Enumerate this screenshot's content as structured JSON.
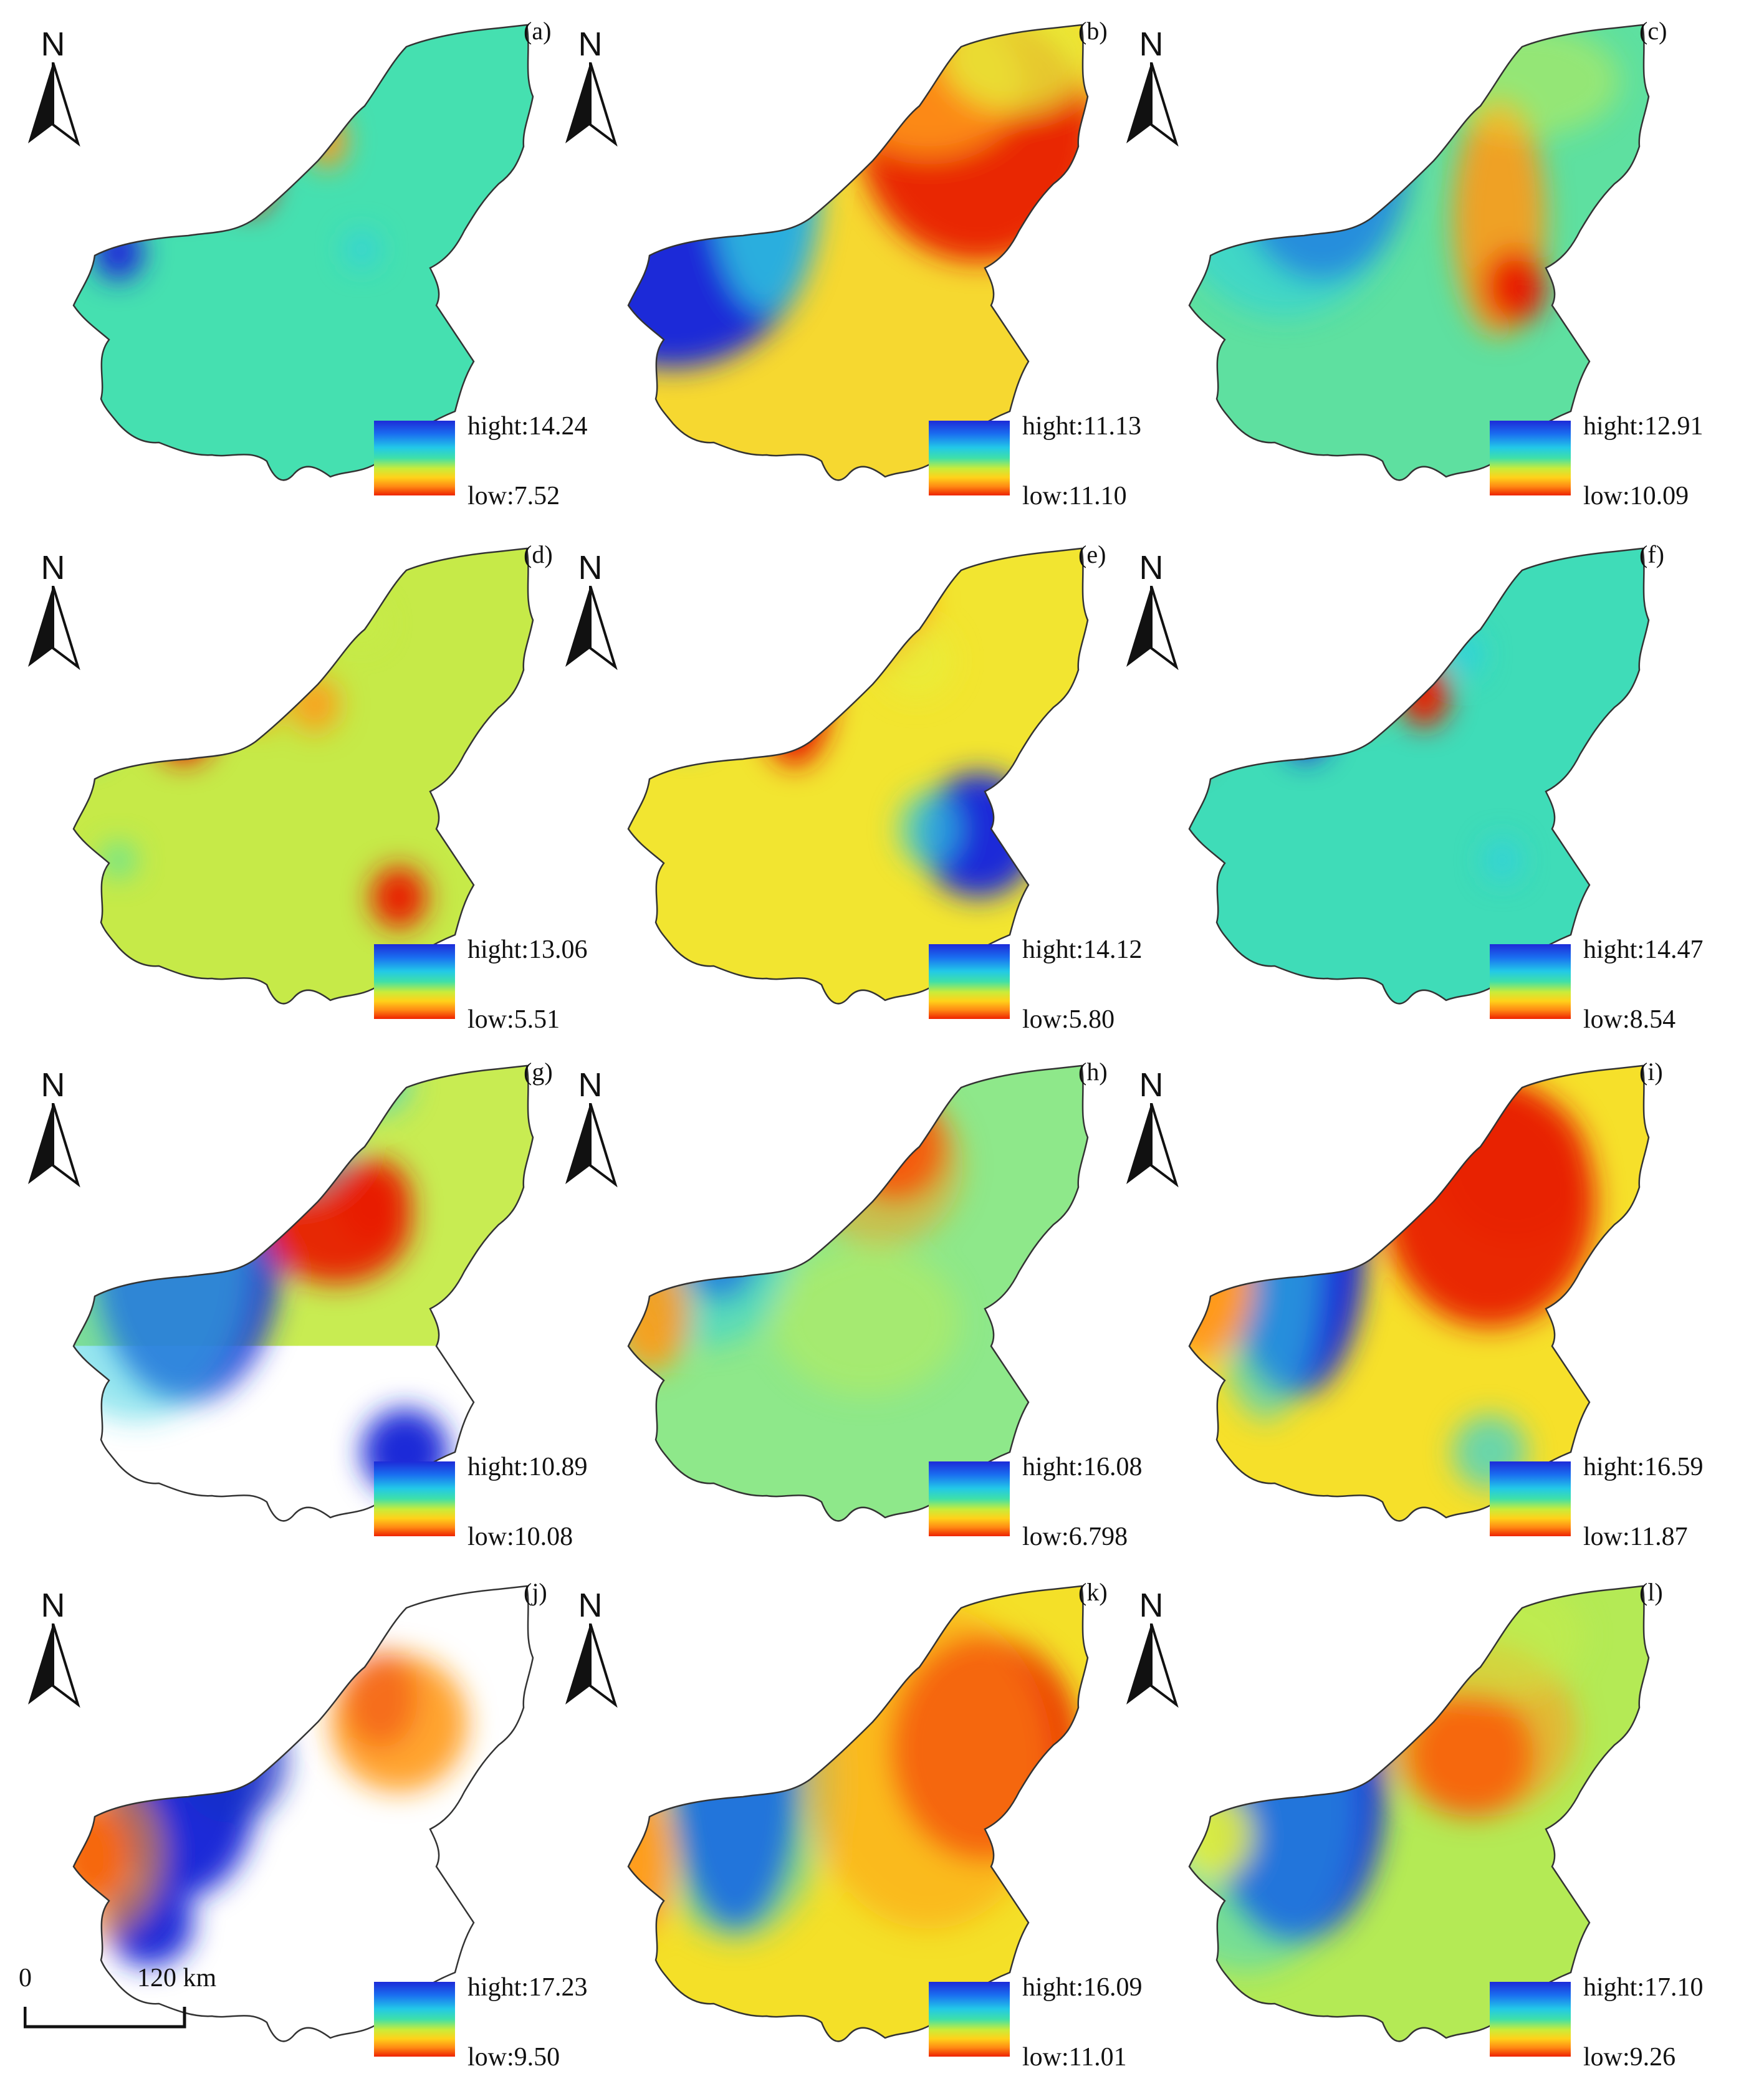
{
  "north_letter": "N",
  "scale": {
    "start": "0",
    "end": "120 km"
  },
  "panels": [
    {
      "label": "(a)",
      "high": "hight:14.24",
      "low": "low:7.52"
    },
    {
      "label": "(b)",
      "high": "hight:11.13",
      "low": "low:11.10"
    },
    {
      "label": "(c)",
      "high": "hight:12.91",
      "low": "low:10.09"
    },
    {
      "label": "(d)",
      "high": "hight:13.06",
      "low": "low:5.51"
    },
    {
      "label": "(e)",
      "high": "hight:14.12",
      "low": "low:5.80"
    },
    {
      "label": "(f)",
      "high": "hight:14.47",
      "low": "low:8.54"
    },
    {
      "label": "(g)",
      "high": "hight:10.89",
      "low": "low:10.08"
    },
    {
      "label": "(h)",
      "high": "hight:16.08",
      "low": "low:6.798"
    },
    {
      "label": "(i)",
      "high": "hight:16.59",
      "low": "low:11.87"
    },
    {
      "label": "(j)",
      "high": "hight:17.23",
      "low": "low:9.50"
    },
    {
      "label": "(k)",
      "high": "hight:16.09",
      "low": "low:11.01"
    },
    {
      "label": "(l)",
      "high": "hight:17.10",
      "low": "low:9.26"
    }
  ],
  "colors": {
    "high": "#1d2bd8",
    "mid": "#3fe0a8",
    "low": "#ee2200"
  }
}
